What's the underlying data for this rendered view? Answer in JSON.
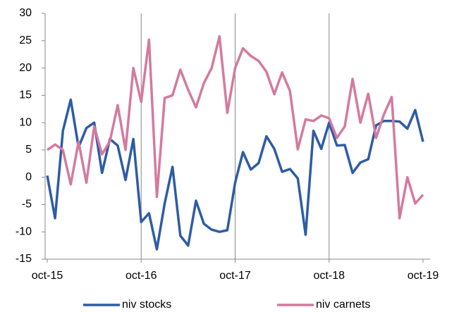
{
  "chart_data": {
    "type": "line",
    "categories": [
      "oct-15",
      null,
      null,
      null,
      null,
      null,
      null,
      null,
      null,
      null,
      null,
      null,
      "oct-16",
      null,
      null,
      null,
      null,
      null,
      null,
      null,
      null,
      null,
      null,
      null,
      "oct-17",
      null,
      null,
      null,
      null,
      null,
      null,
      null,
      null,
      null,
      null,
      null,
      "oct-18",
      null,
      null,
      null,
      null,
      null,
      null,
      null,
      null,
      null,
      null,
      null,
      "oct-19"
    ],
    "series": [
      {
        "name": "niv stocks",
        "color": "#2e5ca5",
        "values": [
          0.3,
          -7.5,
          8.5,
          14.2,
          5.5,
          9,
          10,
          0.8,
          7,
          5.8,
          -0.5,
          7,
          -8.2,
          -6.6,
          -13.2,
          -4.8,
          1.9,
          -10.7,
          -12.5,
          -4.3,
          -8.5,
          -9.6,
          -10,
          -9.7,
          -1,
          4.6,
          1.4,
          2.6,
          7.5,
          5.2,
          1,
          1.5,
          -0.2,
          -10.5,
          8.5,
          5.2,
          10,
          5.8,
          5.9,
          0.8,
          2.7,
          3.3,
          9.5,
          10.3,
          10.3,
          10.2,
          8.9,
          12.3,
          6.5
        ]
      },
      {
        "name": "niv carnets",
        "color": "#d47a9f",
        "values": [
          5,
          6,
          5,
          -1.3,
          6.5,
          -1,
          9.3,
          4.2,
          6.6,
          13.2,
          5,
          20,
          13.8,
          25.2,
          -3.6,
          14.5,
          15,
          19.7,
          16,
          12.8,
          17.2,
          20,
          25.8,
          11.8,
          20,
          23.6,
          22.2,
          21.3,
          19.3,
          15.2,
          19.2,
          15.8,
          5.1,
          10.6,
          10.3,
          11.3,
          10.8,
          7.2,
          9.3,
          18,
          10,
          15.3,
          7.2,
          11.5,
          14.7,
          -7.5,
          0,
          -4.8,
          -3.2
        ]
      }
    ],
    "ylim": [
      -15,
      30
    ],
    "yticks": [
      -15,
      -10,
      -5,
      0,
      5,
      10,
      15,
      20,
      25,
      30
    ],
    "legend": "bottom"
  }
}
